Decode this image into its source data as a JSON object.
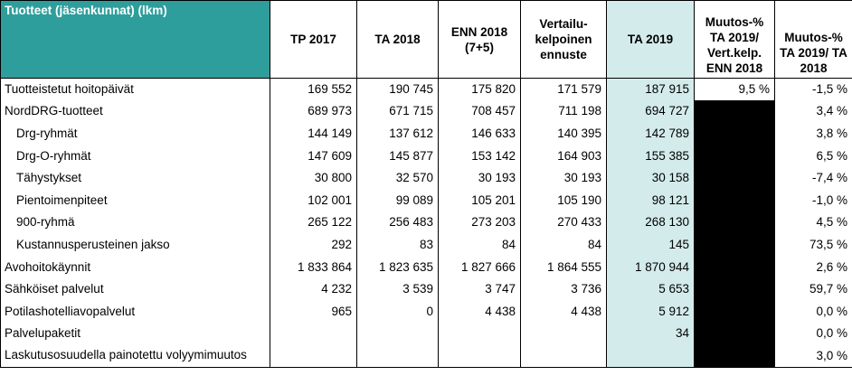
{
  "header": {
    "title": "Tuotteet (jäsenkunnat) (lkm)",
    "columns": [
      "TP 2017",
      "TA 2018",
      "ENN 2018 (7+5)",
      "Vertailu- kelpoinen ennuste",
      "TA 2019",
      "Muutos-% TA 2019/ Vert.kelp. ENN 2018",
      "Muutos-% TA 2019/ TA 2018"
    ]
  },
  "rows": [
    {
      "label": "Tuotteistetut hoitopäivät",
      "indent": false,
      "values": [
        "169 552",
        "190 745",
        "175 820",
        "171 579",
        "187 915",
        "9,5 %",
        "-1,5 %"
      ],
      "black_cell": false
    },
    {
      "label": "NordDRG-tuotteet",
      "indent": false,
      "values": [
        "689 973",
        "671 715",
        "708 457",
        "711 198",
        "694 727",
        "",
        "3,4 %"
      ],
      "black_cell": true
    },
    {
      "label": "Drg-ryhmät",
      "indent": true,
      "values": [
        "144 149",
        "137 612",
        "146 633",
        "140 395",
        "142 789",
        "",
        "3,8 %"
      ],
      "black_cell": true
    },
    {
      "label": "Drg-O-ryhmät",
      "indent": true,
      "values": [
        "147 609",
        "145 877",
        "153 142",
        "164 903",
        "155 385",
        "",
        "6,5 %"
      ],
      "black_cell": true
    },
    {
      "label": "Tähystykset",
      "indent": true,
      "values": [
        "30 800",
        "32 570",
        "30 193",
        "30 193",
        "30 158",
        "",
        "-7,4 %"
      ],
      "black_cell": true
    },
    {
      "label": "Pientoimenpiteet",
      "indent": true,
      "values": [
        "102 001",
        "99 089",
        "105 201",
        "105 190",
        "98 121",
        "",
        "-1,0 %"
      ],
      "black_cell": true
    },
    {
      "label": "900-ryhmä",
      "indent": true,
      "values": [
        "265 122",
        "256 483",
        "273 203",
        "270 433",
        "268 130",
        "",
        "4,5 %"
      ],
      "black_cell": true
    },
    {
      "label": "Kustannusperusteinen jakso",
      "indent": true,
      "values": [
        "292",
        "83",
        "84",
        "84",
        "145",
        "",
        "73,5 %"
      ],
      "black_cell": true
    },
    {
      "label": "Avohoitokäynnit",
      "indent": false,
      "values": [
        "1 833 864",
        "1 823 635",
        "1 827 666",
        "1 864 555",
        "1 870 944",
        "",
        "2,6 %"
      ],
      "black_cell": true
    },
    {
      "label": "Sähköiset palvelut",
      "indent": false,
      "values": [
        "4 232",
        "3 539",
        "3 747",
        "3 736",
        "5 653",
        "",
        "59,7 %"
      ],
      "black_cell": true
    },
    {
      "label": "Potilashotelliavopalvelut",
      "indent": false,
      "values": [
        "965",
        "0",
        "4 438",
        "4 438",
        "5 912",
        "",
        "0,0 %"
      ],
      "black_cell": true
    },
    {
      "label": "Palvelupaketit",
      "indent": false,
      "values": [
        "",
        "",
        "",
        "",
        "34",
        "",
        "0,0 %"
      ],
      "black_cell": true
    },
    {
      "label": "Laskutusosuudella painotettu volyymimuutos",
      "indent": false,
      "values": [
        "",
        "",
        "",
        "",
        "",
        "",
        "3,0 %"
      ],
      "black_cell": true
    }
  ]
}
